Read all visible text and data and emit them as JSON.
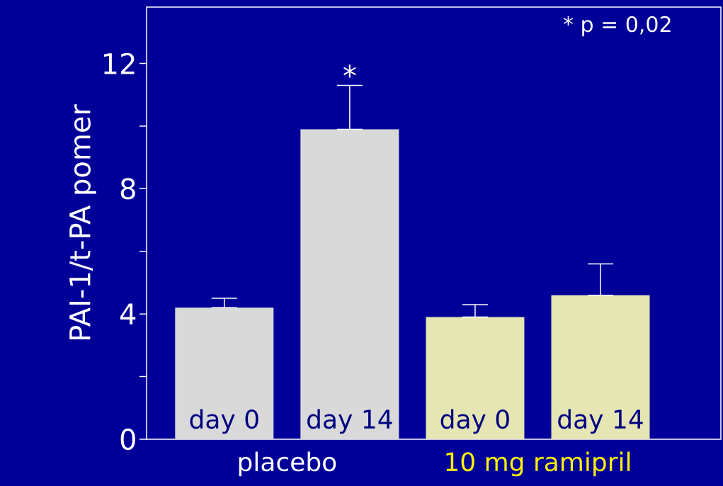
{
  "chart_data": {
    "type": "bar",
    "ylabel": "PAI-1/t-PA pomer",
    "categories": [
      "day 0",
      "day 14",
      "day 0",
      "day 14"
    ],
    "series": [
      {
        "name": "placebo",
        "color": "#d9d9d9",
        "values": [
          4.2,
          9.9,
          null,
          null
        ],
        "errors": [
          [
            4.2,
            4.5
          ],
          [
            9.9,
            11.3
          ],
          null,
          null
        ]
      },
      {
        "name": "10 mg ramipril",
        "color": "#e6e6b4",
        "values": [
          null,
          null,
          3.9,
          4.6
        ],
        "errors": [
          null,
          null,
          [
            3.9,
            4.3
          ],
          [
            4.6,
            5.6
          ]
        ]
      }
    ],
    "ylim": [
      0,
      13.8
    ],
    "yticks": [
      0,
      {
        "value": 2,
        "label": null
      },
      4,
      {
        "value": 6,
        "label": null
      },
      8,
      {
        "value": 10,
        "label": null
      },
      12
    ],
    "annotations": [
      {
        "text": "*",
        "y": 11.3
      },
      "* p = 0,02"
    ],
    "legend": false,
    "grid": false
  }
}
